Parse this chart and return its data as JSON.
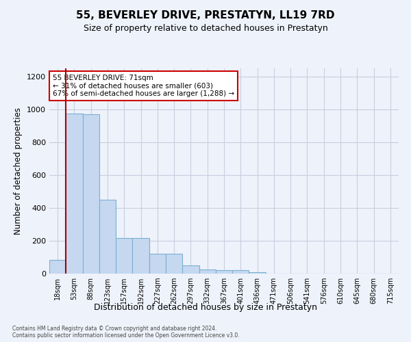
{
  "title": "55, BEVERLEY DRIVE, PRESTATYN, LL19 7RD",
  "subtitle": "Size of property relative to detached houses in Prestatyn",
  "xlabel": "Distribution of detached houses by size in Prestatyn",
  "ylabel": "Number of detached properties",
  "bar_values": [
    82,
    975,
    970,
    450,
    215,
    215,
    120,
    120,
    48,
    25,
    22,
    20,
    10,
    0,
    0,
    0,
    0,
    0,
    0,
    0,
    0
  ],
  "categories": [
    "18sqm",
    "53sqm",
    "88sqm",
    "123sqm",
    "157sqm",
    "192sqm",
    "227sqm",
    "262sqm",
    "297sqm",
    "332sqm",
    "367sqm",
    "401sqm",
    "436sqm",
    "471sqm",
    "506sqm",
    "541sqm",
    "576sqm",
    "610sqm",
    "645sqm",
    "680sqm",
    "715sqm"
  ],
  "bar_color": "#c5d8f0",
  "bar_edge_color": "#7aafd4",
  "property_line_color": "#aa0000",
  "property_line_x": 1.0,
  "annotation_text": "55 BEVERLEY DRIVE: 71sqm\n← 31% of detached houses are smaller (603)\n67% of semi-detached houses are larger (1,288) →",
  "annotation_box_facecolor": "#ffffff",
  "annotation_box_edgecolor": "#cc0000",
  "ylim": [
    0,
    1250
  ],
  "yticks": [
    0,
    200,
    400,
    600,
    800,
    1000,
    1200
  ],
  "footnote": "Contains HM Land Registry data © Crown copyright and database right 2024.\nContains public sector information licensed under the Open Government Licence v3.0.",
  "bg_color": "#eef2fa",
  "plot_bg_color": "#eef2fa",
  "grid_color": "#c8cee0"
}
